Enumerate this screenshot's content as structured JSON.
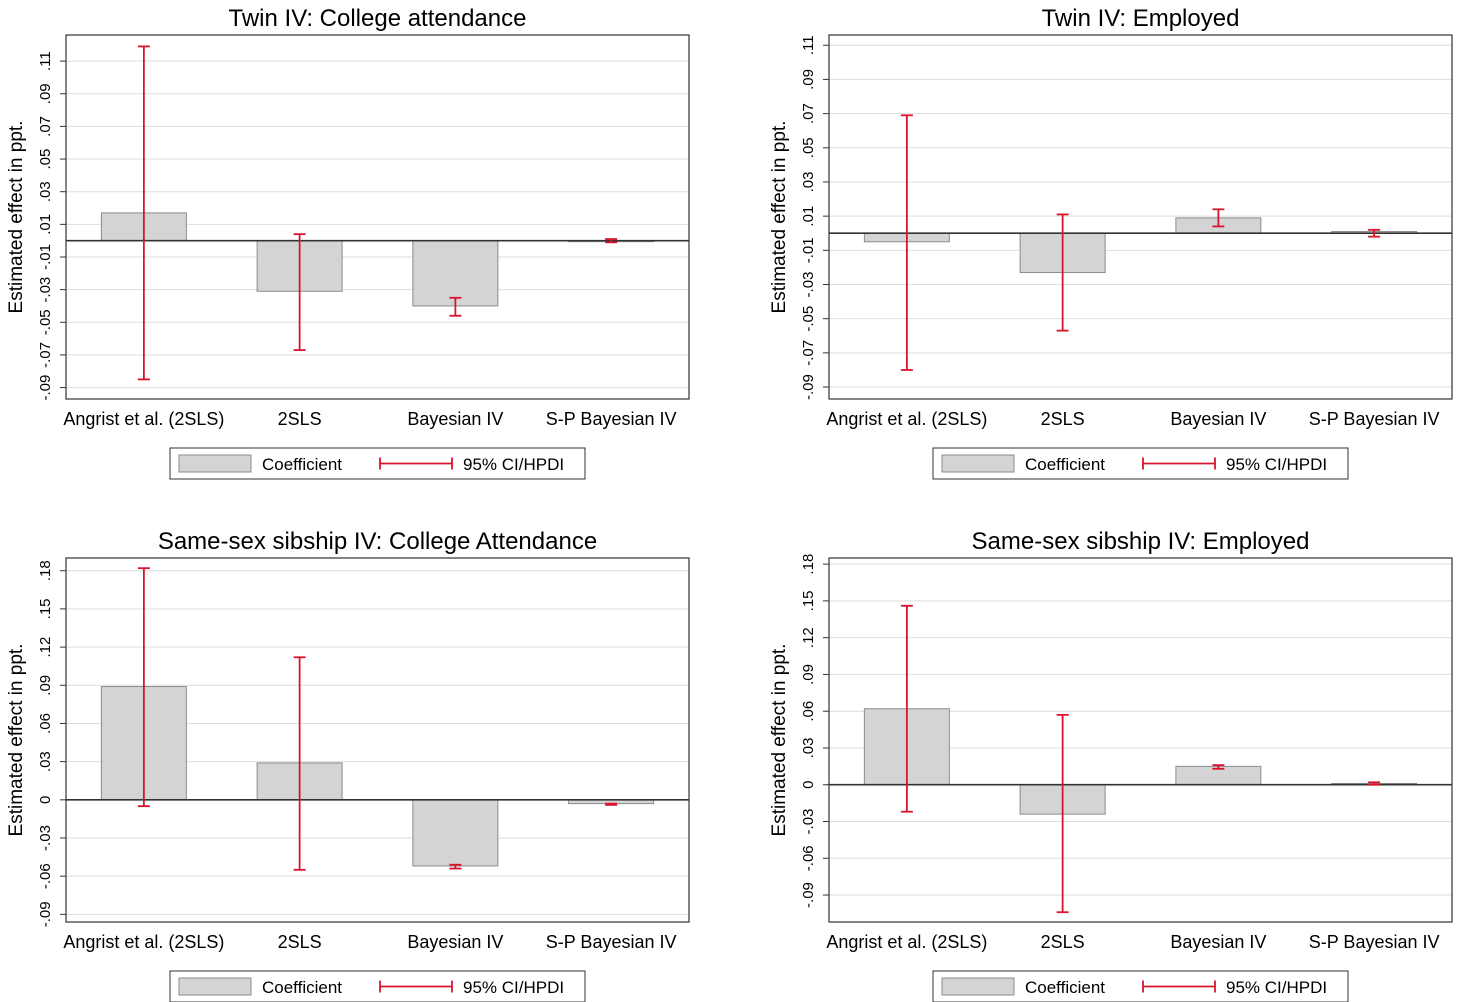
{
  "chart_data": [
    {
      "type": "bar",
      "title": "Twin IV: College attendance",
      "ylabel": "Estimated effect in ppt.",
      "categories": [
        "Angrist et al. (2SLS)",
        "2SLS",
        "Bayesian IV",
        "S-P Bayesian IV"
      ],
      "yticks": [
        -0.09,
        -0.07,
        -0.05,
        -0.03,
        -0.01,
        0.01,
        0.03,
        0.05,
        0.07,
        0.09,
        0.11
      ],
      "yticklabels": [
        "-.09",
        "-.07",
        "-.05",
        "-.03",
        "-.01",
        ".01",
        ".03",
        ".05",
        ".07",
        ".09",
        ".11"
      ],
      "ylim": [
        -0.097,
        0.126
      ],
      "values": [
        0.017,
        -0.031,
        -0.04,
        0.0
      ],
      "ci_low": [
        -0.085,
        -0.067,
        -0.046,
        -0.001
      ],
      "ci_high": [
        0.119,
        0.004,
        -0.035,
        0.001
      ],
      "legend": {
        "coefficient": "Coefficient",
        "ci": "95% CI/HPDI"
      }
    },
    {
      "type": "bar",
      "title": "Twin IV: Employed",
      "ylabel": "Estimated effect in ppt.",
      "categories": [
        "Angrist et al. (2SLS)",
        "2SLS",
        "Bayesian IV",
        "S-P Bayesian IV"
      ],
      "yticks": [
        -0.09,
        -0.07,
        -0.05,
        -0.03,
        -0.01,
        0.01,
        0.03,
        0.05,
        0.07,
        0.09,
        0.11
      ],
      "yticklabels": [
        "-.09",
        "-.07",
        "-.05",
        "-.03",
        "-.01",
        ".01",
        ".03",
        ".05",
        ".07",
        ".09",
        ".11"
      ],
      "ylim": [
        -0.097,
        0.116
      ],
      "values": [
        -0.005,
        -0.023,
        0.009,
        0.001
      ],
      "ci_low": [
        -0.08,
        -0.057,
        0.004,
        -0.002
      ],
      "ci_high": [
        0.069,
        0.011,
        0.014,
        0.002
      ],
      "legend": {
        "coefficient": "Coefficient",
        "ci": "95% CI/HPDI"
      }
    },
    {
      "type": "bar",
      "title": "Same-sex sibship IV: College Attendance",
      "ylabel": "Estimated effect in ppt.",
      "categories": [
        "Angrist et al. (2SLS)",
        "2SLS",
        "Bayesian IV",
        "S-P Bayesian IV"
      ],
      "yticks": [
        -0.09,
        -0.06,
        -0.03,
        0,
        0.03,
        0.06,
        0.09,
        0.12,
        0.15,
        0.18
      ],
      "yticklabels": [
        "-.09",
        "-.06",
        "-.03",
        "0",
        ".03",
        ".06",
        ".09",
        ".12",
        ".15",
        ".18"
      ],
      "ylim": [
        -0.096,
        0.19
      ],
      "values": [
        0.089,
        0.029,
        -0.052,
        -0.003
      ],
      "ci_low": [
        -0.005,
        -0.055,
        -0.054,
        -0.004
      ],
      "ci_high": [
        0.182,
        0.112,
        -0.051,
        -0.003
      ],
      "legend": {
        "coefficient": "Coefficient",
        "ci": "95% CI/HPDI"
      }
    },
    {
      "type": "bar",
      "title": "Same-sex sibship IV: Employed",
      "ylabel": "Estimated effect in ppt.",
      "categories": [
        "Angrist et al. (2SLS)",
        "2SLS",
        "Bayesian IV",
        "S-P Bayesian IV"
      ],
      "yticks": [
        -0.09,
        -0.06,
        -0.03,
        0,
        0.03,
        0.06,
        0.09,
        0.12,
        0.15,
        0.18
      ],
      "yticklabels": [
        "-.09",
        "-.06",
        "-.03",
        "0",
        ".03",
        ".06",
        ".09",
        ".12",
        ".15",
        ".18"
      ],
      "ylim": [
        -0.112,
        0.185
      ],
      "values": [
        0.062,
        -0.024,
        0.015,
        0.001
      ],
      "ci_low": [
        -0.022,
        -0.104,
        0.013,
        0.0
      ],
      "ci_high": [
        0.146,
        0.057,
        0.016,
        0.002
      ],
      "legend": {
        "coefficient": "Coefficient",
        "ci": "95% CI/HPDI"
      }
    }
  ],
  "colors": {
    "bar_fill": "#d4d4d4",
    "bar_stroke": "#8c8c8c",
    "ci": "#d8152c",
    "grid": "#dedede",
    "zero_line": "#333333",
    "text": "#000000"
  }
}
